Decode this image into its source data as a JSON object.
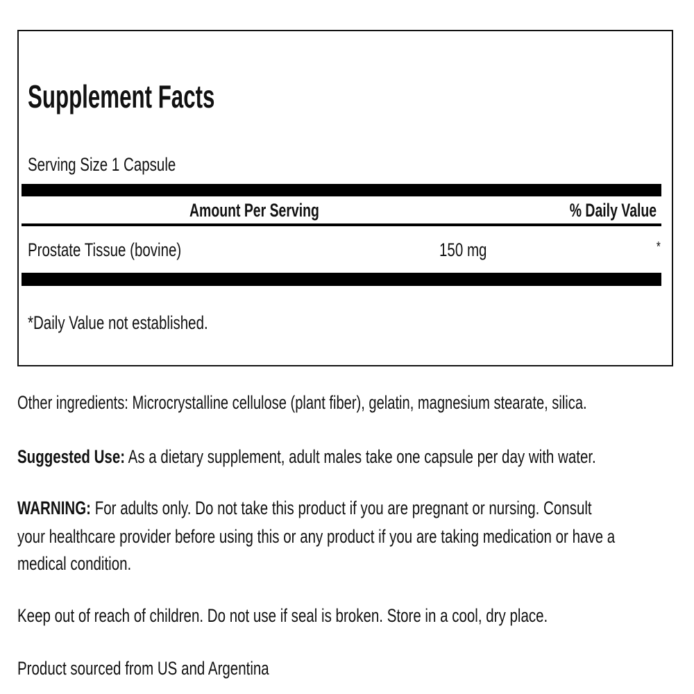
{
  "facts": {
    "title": "Supplement Facts",
    "serving_size": "Serving Size 1 Capsule",
    "header_amount": "Amount Per Serving",
    "header_dv": "% Daily Value",
    "rows": [
      {
        "name": "Prostate Tissue (bovine)",
        "amount": "150 mg",
        "dv": "*"
      }
    ],
    "footnote": "*Daily Value not established."
  },
  "other_ingredients": "Other ingredients: Microcrystalline cellulose (plant fiber), gelatin, magnesium stearate, silica.",
  "suggested_use": {
    "label": "Suggested Use:",
    "text": " As a dietary supplement, adult males take one capsule per day with water."
  },
  "warning": {
    "label": "WARNING:",
    "line1": " For adults only. Do not take this product if you are pregnant or nursing. Consult",
    "line2": "your healthcare provider before using this or any product if you are taking medication or have a",
    "line3": "medical condition."
  },
  "storage": "Keep out of reach of children. Do not use if seal is broken. Store in a cool, dry place.",
  "source": "Product sourced from US and Argentina"
}
